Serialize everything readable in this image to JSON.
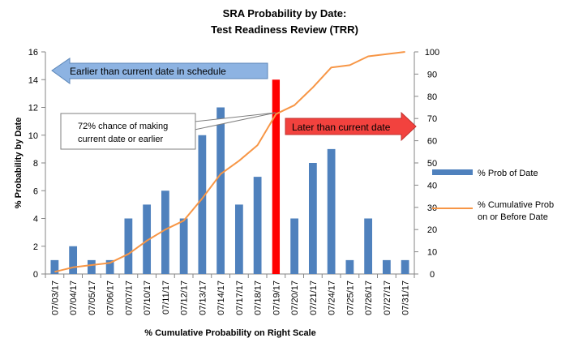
{
  "chart_data": {
    "type": "bar",
    "title_line1": "SRA Probability by Date:",
    "title_line2": "Test Readiness Review (TRR)",
    "xlabel": "% Cumulative Probability on Right Scale",
    "ylabel": "% Probability by Date",
    "ylim": [
      0,
      16
    ],
    "y_ticks": [
      0,
      2,
      4,
      6,
      8,
      10,
      12,
      14,
      16
    ],
    "y2lim": [
      0,
      100
    ],
    "y2_ticks": [
      0,
      10,
      20,
      30,
      40,
      50,
      60,
      70,
      80,
      90,
      100
    ],
    "grid": false,
    "legend_position": "right",
    "categories": [
      "07/03/17",
      "07/04/17",
      "07/05/17",
      "07/06/17",
      "07/07/17",
      "07/10/17",
      "07/11/17",
      "07/12/17",
      "07/13/17",
      "07/14/17",
      "07/17/17",
      "07/18/17",
      "07/19/17",
      "07/20/17",
      "07/21/17",
      "07/24/17",
      "07/25/17",
      "07/26/17",
      "07/27/17",
      "07/31/17"
    ],
    "series": [
      {
        "name": "% Prob of Date",
        "kind": "bar",
        "axis": "left",
        "color": "#4F81BD",
        "values": [
          1,
          2,
          1,
          1,
          4,
          5,
          6,
          4,
          10,
          12,
          5,
          7,
          14,
          4,
          8,
          9,
          1,
          4,
          1,
          1
        ],
        "highlight_index": 12,
        "highlight_color": "#FF0000"
      },
      {
        "name": "% Cumulative Prob on or Before Date",
        "legend_lines": [
          "% Cumulative Prob",
          "on or Before Date"
        ],
        "kind": "line",
        "axis": "right",
        "color": "#F79646",
        "values": [
          1,
          3,
          4,
          5,
          9,
          15,
          20,
          24,
          34,
          45,
          51,
          58,
          72,
          76,
          84,
          93,
          94,
          98,
          99,
          100
        ]
      }
    ],
    "annotations": {
      "left_arrow": {
        "text": "Earlier than current date in schedule",
        "color": "#8DB3E2"
      },
      "right_arrow": {
        "text": "Later than current date",
        "color": "#F2423E"
      },
      "callout": {
        "lines": [
          "72% chance of making",
          "current date or earlier"
        ]
      }
    }
  }
}
